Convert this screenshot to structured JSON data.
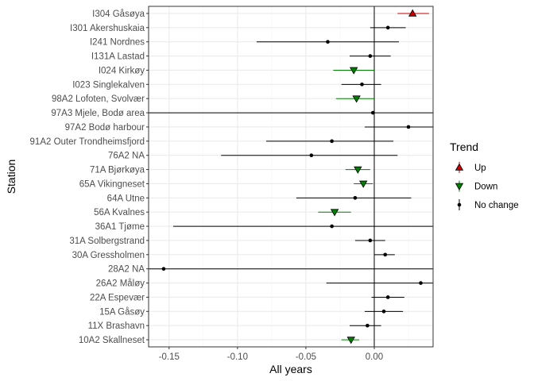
{
  "chart_data": {
    "type": "scatter",
    "title": "",
    "xlabel": "All years",
    "ylabel": "Station",
    "xlim": [
      -0.165,
      0.043
    ],
    "x_ticks": [
      -0.15,
      -0.1,
      -0.05,
      0.0
    ],
    "x_tick_labels": [
      "-0.15",
      "-0.10",
      "-0.05",
      "0.00"
    ],
    "reference_line_x": 0,
    "grid": true,
    "legend": {
      "title": "Trend",
      "placement": "right",
      "entries": [
        {
          "label": "Up",
          "color": "#cc0000",
          "shape": "triangle-up"
        },
        {
          "label": "Down",
          "color": "#008000",
          "shape": "triangle-down"
        },
        {
          "label": "No change",
          "color": "#000000",
          "shape": "circle"
        }
      ]
    },
    "points": [
      {
        "station": "I304 Gåsøya",
        "estimate": 0.028,
        "low": 0.017,
        "high": 0.04,
        "trend": "Up"
      },
      {
        "station": "I301 Akershuskaia",
        "estimate": 0.01,
        "low": -0.003,
        "high": 0.023,
        "trend": "No change"
      },
      {
        "station": "I241 Nordnes",
        "estimate": -0.034,
        "low": -0.086,
        "high": 0.018,
        "trend": "No change"
      },
      {
        "station": "I131A Lastad",
        "estimate": -0.003,
        "low": -0.018,
        "high": 0.012,
        "trend": "No change"
      },
      {
        "station": "I024 Kirkøy",
        "estimate": -0.015,
        "low": -0.03,
        "high": 0.0,
        "trend": "Down"
      },
      {
        "station": "I023 Singlekalven",
        "estimate": -0.009,
        "low": -0.024,
        "high": 0.005,
        "trend": "No change"
      },
      {
        "station": "98A2 Lofoten, Svolvær",
        "estimate": -0.013,
        "low": -0.028,
        "high": 0.0,
        "trend": "Down"
      },
      {
        "station": "97A3 Mjele, Bodø area",
        "estimate": -0.001,
        "low": -0.175,
        "high": 0.2,
        "trend": "No change"
      },
      {
        "station": "97A2 Bodø harbour",
        "estimate": 0.025,
        "low": -0.007,
        "high": 0.06,
        "trend": "No change"
      },
      {
        "station": "91A2 Outer Trondheimsfjord",
        "estimate": -0.031,
        "low": -0.079,
        "high": 0.014,
        "trend": "No change"
      },
      {
        "station": "76A2 NA",
        "estimate": -0.046,
        "low": -0.112,
        "high": 0.017,
        "trend": "No change"
      },
      {
        "station": "71A Bjørkøya",
        "estimate": -0.012,
        "low": -0.021,
        "high": -0.003,
        "trend": "Down"
      },
      {
        "station": "65A Vikingneset",
        "estimate": -0.008,
        "low": -0.015,
        "high": -0.001,
        "trend": "Down"
      },
      {
        "station": "64A Utne",
        "estimate": -0.014,
        "low": -0.057,
        "high": 0.027,
        "trend": "No change"
      },
      {
        "station": "56A Kvalnes",
        "estimate": -0.029,
        "low": -0.041,
        "high": -0.017,
        "trend": "Down"
      },
      {
        "station": "36A1 Tjøme",
        "estimate": -0.031,
        "low": -0.147,
        "high": 0.08,
        "trend": "No change"
      },
      {
        "station": "31A Solbergstrand",
        "estimate": -0.003,
        "low": -0.014,
        "high": 0.008,
        "trend": "No change"
      },
      {
        "station": "30A Gressholmen",
        "estimate": 0.008,
        "low": 0.0,
        "high": 0.015,
        "trend": "No change"
      },
      {
        "station": "28A2 NA",
        "estimate": -0.154,
        "low": -0.2,
        "high": 0.2,
        "trend": "No change"
      },
      {
        "station": "26A2 Måløy",
        "estimate": 0.034,
        "low": -0.035,
        "high": 0.08,
        "trend": "No change"
      },
      {
        "station": "22A Espevær",
        "estimate": 0.01,
        "low": -0.002,
        "high": 0.022,
        "trend": "No change"
      },
      {
        "station": "15A Gåsøy",
        "estimate": 0.007,
        "low": -0.007,
        "high": 0.021,
        "trend": "No change"
      },
      {
        "station": "11X Brashavn",
        "estimate": -0.005,
        "low": -0.018,
        "high": 0.005,
        "trend": "No change"
      },
      {
        "station": "10A2 Skallneset",
        "estimate": -0.017,
        "low": -0.024,
        "high": -0.011,
        "trend": "Down"
      }
    ]
  },
  "colors": {
    "panel_background": "#ffffff",
    "grid_major": "#ebebeb",
    "grid_minor": "#f5f5f5",
    "panel_border": "#333333",
    "up_fill": "#cc0000",
    "down_fill": "#008000",
    "no_change": "#000000"
  }
}
